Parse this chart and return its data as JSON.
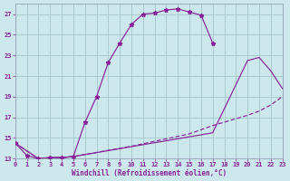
{
  "background_color": "#cce8ec",
  "grid_color": "#aacccc",
  "line_color": "#882299",
  "xlabel": "Windchill (Refroidissement éolien,°C)",
  "xlim": [
    0,
    23
  ],
  "ylim": [
    13,
    28
  ],
  "yticks": [
    13,
    15,
    17,
    19,
    21,
    23,
    25,
    27
  ],
  "xticks": [
    0,
    1,
    2,
    3,
    4,
    5,
    6,
    7,
    8,
    9,
    10,
    11,
    12,
    13,
    14,
    15,
    16,
    17,
    18,
    19,
    20,
    21,
    22,
    23
  ],
  "curve1_x": [
    0,
    1,
    2,
    3,
    4,
    5,
    6,
    7,
    8,
    9,
    10,
    11,
    12,
    13,
    14,
    15,
    16,
    17
  ],
  "curve1_y": [
    14.5,
    13.3,
    13.0,
    13.1,
    13.1,
    13.2,
    16.5,
    19.0,
    22.3,
    24.2,
    26.0,
    27.0,
    27.1,
    27.4,
    27.5,
    27.2,
    26.9,
    24.2
  ],
  "curve2_x": [
    0,
    2,
    3,
    4,
    5,
    17,
    20,
    21,
    22,
    23
  ],
  "curve2_y": [
    14.5,
    13.0,
    13.1,
    13.1,
    13.2,
    15.5,
    22.5,
    22.8,
    21.5,
    19.8
  ],
  "curve3_x": [
    0,
    2,
    3,
    4,
    5,
    10,
    15,
    17,
    20,
    21,
    22,
    23
  ],
  "curve3_y": [
    14.5,
    13.0,
    13.1,
    13.1,
    13.2,
    14.2,
    15.4,
    16.2,
    17.2,
    17.6,
    18.2,
    19.0
  ]
}
